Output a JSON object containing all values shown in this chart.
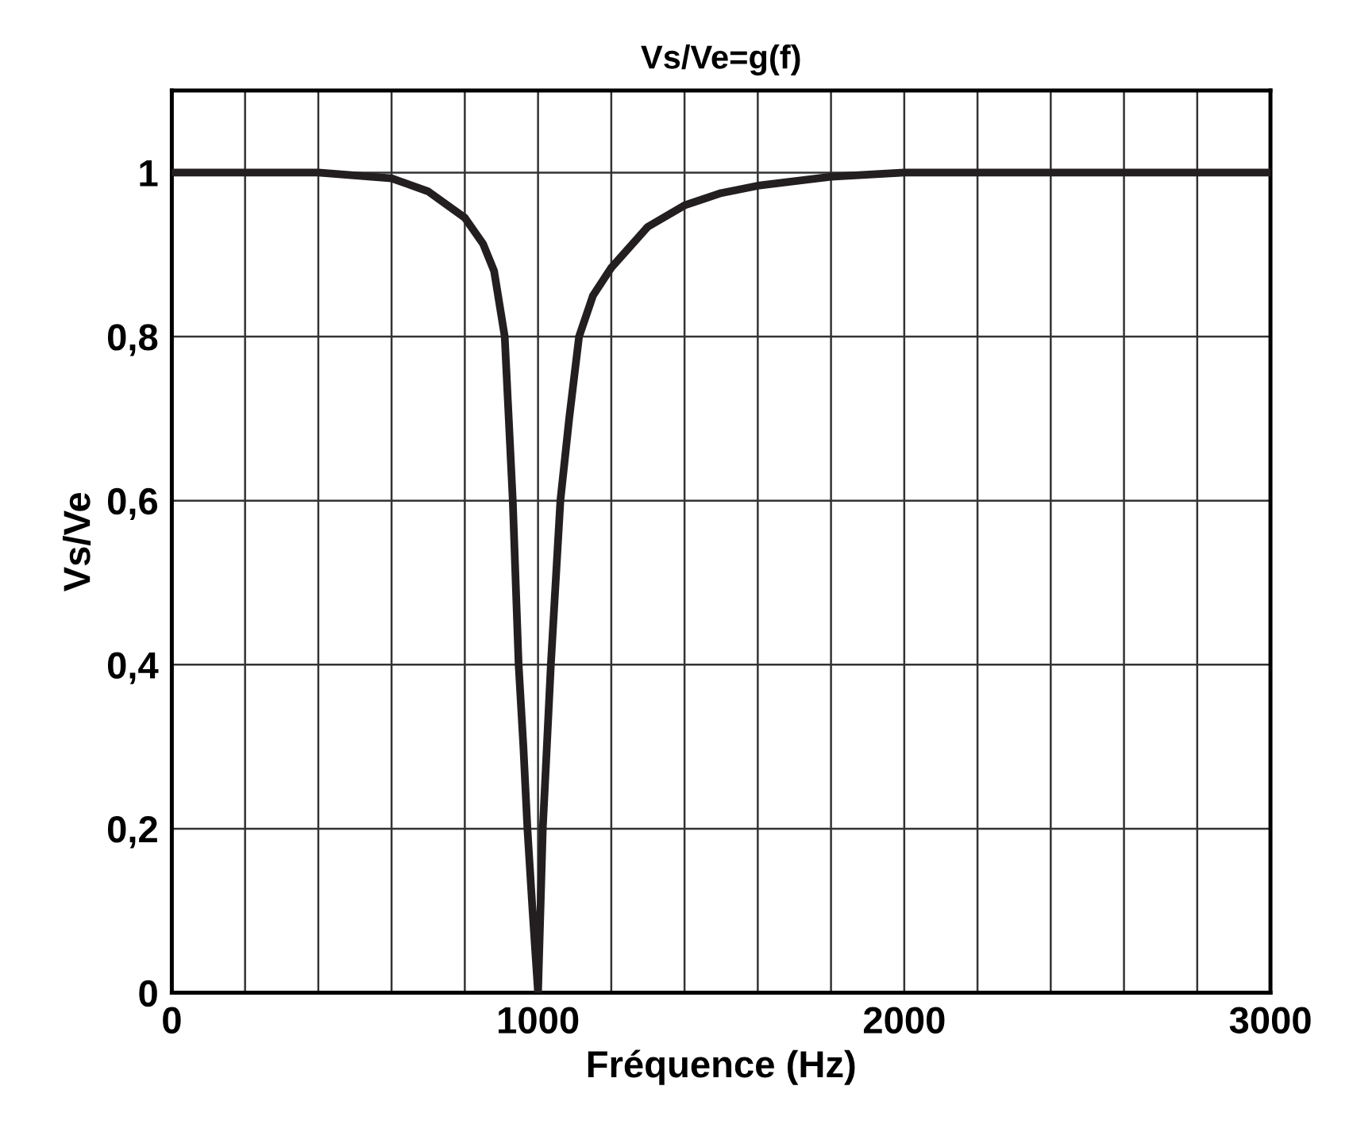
{
  "chart_data": {
    "type": "line",
    "title": "Vs/Ve=g(f)",
    "xlabel": "Fréquence (Hz)",
    "ylabel": "Vs/Ve",
    "series": [
      {
        "color": "#231f20",
        "x": [
          0,
          200,
          400,
          600,
          700,
          800,
          850,
          880,
          909,
          931,
          947,
          960,
          971,
          985,
          1000,
          1013,
          1024,
          1035,
          1048,
          1061,
          1085,
          1112,
          1150,
          1200,
          1300,
          1400,
          1500,
          1600,
          1800,
          2000,
          2500,
          3000
        ],
        "values": [
          1,
          1,
          1,
          0.993,
          0.977,
          0.945,
          0.913,
          0.88,
          0.8,
          0.6,
          0.4,
          0.3,
          0.2,
          0.1,
          0,
          0.2,
          0.3,
          0.4,
          0.5,
          0.6,
          0.7,
          0.8,
          0.85,
          0.884,
          0.934,
          0.96,
          0.975,
          0.984,
          0.995,
          1,
          1,
          1
        ]
      }
    ],
    "xlim": [
      0,
      3000
    ],
    "ylim": [
      0,
      1.1
    ],
    "xticks": [
      0,
      {
        "value": 200,
        "label": null
      },
      {
        "value": 400,
        "label": null
      },
      {
        "value": 600,
        "label": null
      },
      {
        "value": 800,
        "label": null
      },
      1000,
      {
        "value": 1200,
        "label": null
      },
      {
        "value": 1400,
        "label": null
      },
      {
        "value": 1600,
        "label": null
      },
      {
        "value": 1800,
        "label": null
      },
      2000,
      {
        "value": 2200,
        "label": null
      },
      {
        "value": 2400,
        "label": null
      },
      {
        "value": 2600,
        "label": null
      },
      {
        "value": 2800,
        "label": null
      },
      3000
    ],
    "yticks": [
      0,
      {
        "value": 0.2,
        "label": "0,2"
      },
      {
        "value": 0.4,
        "label": "0,4"
      },
      {
        "value": 0.6,
        "label": "0,6"
      },
      {
        "value": 0.8,
        "label": "0,8"
      },
      1
    ],
    "grid": true,
    "marker": "none",
    "line_style": "solid"
  }
}
